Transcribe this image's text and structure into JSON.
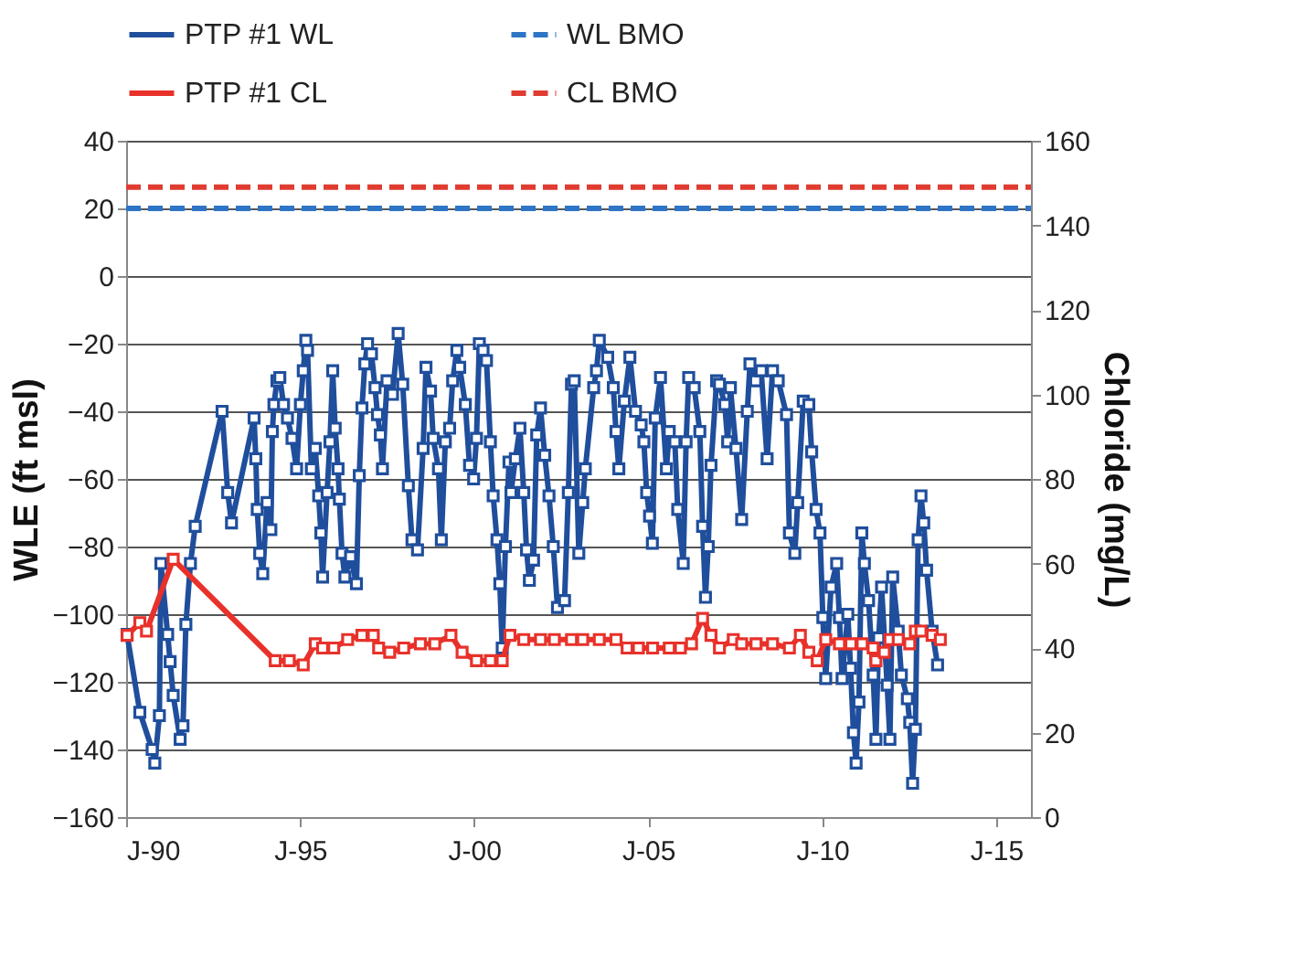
{
  "chart_data": {
    "type": "line",
    "ylabel": "WLE (ft msl)",
    "y2label": "Chloride (mg/L)",
    "xlim": [
      "1990-01",
      "2016-01"
    ],
    "xticks": [
      {
        "value": "1990-01",
        "label": "J-90"
      },
      {
        "value": "1995-01",
        "label": "J-95"
      },
      {
        "value": "2000-01",
        "label": "J-00"
      },
      {
        "value": "2005-01",
        "label": "J-05"
      },
      {
        "value": "2010-01",
        "label": "J-10"
      },
      {
        "value": "2015-01",
        "label": "J-15"
      }
    ],
    "ylim": [
      -160,
      40
    ],
    "yticks": [
      -160,
      -140,
      -120,
      -100,
      -80,
      -60,
      -40,
      -20,
      0,
      20,
      40
    ],
    "y2lim": [
      0,
      160
    ],
    "y2ticks": [
      0,
      20,
      40,
      60,
      80,
      100,
      120,
      140,
      160
    ],
    "grid": "y",
    "legend": "top",
    "series": [
      {
        "name": "PTP #1 WL",
        "color": "#1f4e9c",
        "marker": "square",
        "line_style": "solid",
        "x": [
          "1990-01-11",
          "1990-05-25",
          "1990-08-03",
          "1990-10-01",
          "1990-10-29",
          "1990-12-16",
          "1991-01-01",
          "1991-03-13",
          "1991-04-08",
          "1991-05-10",
          "1991-06-05",
          "1991-07-22",
          "1991-08-21",
          "1991-09-20",
          "1991-11-07",
          "1991-12-27",
          "1992-10-04",
          "1992-12-02",
          "1993-01-11",
          "1993-09-05",
          "1993-09-23",
          "1993-10-08",
          "1993-11-03",
          "1993-12-05",
          "1994-01-19",
          "1994-02-28",
          "1994-03-16",
          "1994-04-01",
          "1994-05-03",
          "1994-06-02",
          "1994-07-11",
          "1994-08-21",
          "1994-10-08",
          "1994-11-25",
          "1995-01-04",
          "1995-02-03",
          "1995-03-02",
          "1995-03-20",
          "1995-04-29",
          "1995-06-09",
          "1995-07-15",
          "1995-08-07",
          "1995-08-25",
          "1995-10-11",
          "1995-11-10",
          "1995-12-09",
          "1996-01-04",
          "1996-02-03",
          "1996-02-17",
          "1996-03-16",
          "1996-04-15",
          "1996-06-13",
          "1996-08-14",
          "1996-09-13",
          "1996-10-11",
          "1996-11-10",
          "1996-12-09",
          "1997-01-19",
          "1997-02-25",
          "1997-03-23",
          "1997-04-22",
          "1997-05-14",
          "1997-07-01",
          "1997-08-28",
          "1997-10-26",
          "1997-12-13",
          "1998-02-10",
          "1998-03-20",
          "1998-05-17",
          "1998-07-15",
          "1998-08-14",
          "1998-10-01",
          "1998-10-29",
          "1998-12-23",
          "1999-01-22",
          "1999-03-05",
          "1999-04-19",
          "1999-05-21",
          "1999-07-04",
          "1999-08-03",
          "1999-10-01",
          "1999-11-14",
          "1999-12-27",
          "2000-01-26",
          "2000-02-25",
          "2000-04-04",
          "2000-05-10",
          "2000-06-20",
          "2000-07-19",
          "2000-08-28",
          "2000-09-27",
          "2000-10-22",
          "2000-11-25",
          "2001-01-01",
          "2001-01-22",
          "2001-03-09",
          "2001-04-26",
          "2001-06-05",
          "2001-07-04",
          "2001-08-03",
          "2001-09-16",
          "2001-10-19",
          "2001-11-28",
          "2002-01-11",
          "2002-02-25",
          "2002-04-11",
          "2002-05-25",
          "2002-08-07",
          "2002-09-16",
          "2002-10-19",
          "2002-11-17",
          "2003-01-04",
          "2003-02-14",
          "2003-03-13",
          "2003-06-09",
          "2003-07-08",
          "2003-08-07",
          "2003-11-03",
          "2004-01-01",
          "2004-01-29",
          "2004-02-28",
          "2004-04-26",
          "2004-06-23",
          "2004-08-21",
          "2004-10-19",
          "2004-11-17",
          "2004-12-16",
          "2005-01-15",
          "2005-02-14",
          "2005-03-16",
          "2005-05-10",
          "2005-07-11",
          "2005-08-10",
          "2005-10-08",
          "2005-11-07",
          "2006-01-04",
          "2006-02-03",
          "2006-03-02",
          "2006-04-29",
          "2006-06-27",
          "2006-07-26",
          "2006-08-25",
          "2006-09-23",
          "2006-10-22",
          "2006-12-20",
          "2007-01-19",
          "2007-03-16",
          "2007-04-15",
          "2007-05-14",
          "2007-07-11",
          "2007-09-09",
          "2007-11-07",
          "2007-12-05",
          "2008-02-03",
          "2008-04-01",
          "2008-06-02",
          "2008-07-29",
          "2008-09-27",
          "2008-12-23",
          "2009-01-22",
          "2009-03-20",
          "2009-04-19",
          "2009-06-16",
          "2009-08-14",
          "2009-09-13",
          "2009-10-29",
          "2009-12-09",
          "2010-01-08",
          "2010-02-07",
          "2010-04-04",
          "2010-06-02",
          "2010-07-01",
          "2010-07-29",
          "2010-09-27",
          "2010-10-26",
          "2010-11-25",
          "2010-12-23",
          "2011-01-22",
          "2011-02-21",
          "2011-03-20",
          "2011-05-03",
          "2011-06-20",
          "2011-07-19",
          "2011-08-17",
          "2011-09-16",
          "2011-11-14",
          "2011-12-13",
          "2012-01-11",
          "2012-03-09",
          "2012-04-11",
          "2012-06-13",
          "2012-07-08",
          "2012-08-07",
          "2012-09-05",
          "2012-10-04",
          "2012-11-03",
          "2012-12-02",
          "2013-01-01",
          "2013-02-28",
          "2013-04-26"
        ],
        "values": [
          -106,
          -129,
          null,
          -140,
          -144,
          -130,
          -85,
          -106,
          -114,
          -124,
          null,
          -137,
          -133,
          -103,
          -85,
          -74,
          -40,
          -64,
          -73,
          -42,
          -54,
          -69,
          -82,
          -88,
          -67,
          -75,
          -46,
          -38,
          -31,
          -30,
          -38,
          -42,
          -48,
          -57,
          -38,
          -28,
          -19,
          -22,
          -57,
          -51,
          -65,
          -76,
          -89,
          -64,
          -49,
          -28,
          -45,
          -57,
          -66,
          -82,
          -89,
          -83,
          -91,
          -59,
          -39,
          -26,
          -20,
          -23,
          -33,
          -41,
          -47,
          -57,
          -31,
          -35,
          -17,
          -32,
          -62,
          -78,
          -81,
          -51,
          -27,
          -34,
          -48,
          -57,
          -78,
          -49,
          -45,
          -31,
          -22,
          -27,
          -38,
          -56,
          -60,
          -48,
          -20,
          -22,
          -25,
          -49,
          -65,
          -78,
          -91,
          -110,
          -80,
          -55,
          -64,
          -54,
          -45,
          -64,
          -81,
          -90,
          -84,
          -47,
          -39,
          -53,
          -65,
          -80,
          -98,
          -96,
          -64,
          -32,
          -31,
          -82,
          -67,
          -57,
          -33,
          -28,
          -19,
          -24,
          -33,
          -46,
          -57,
          -37,
          -24,
          -40,
          -44,
          -49,
          -64,
          -71,
          -79,
          -42,
          -30,
          -57,
          -46,
          -49,
          -69,
          -85,
          -49,
          -30,
          -33,
          -46,
          -74,
          -95,
          -80,
          -56,
          -31,
          -32,
          -38,
          -49,
          -33,
          -51,
          -72,
          -40,
          -26,
          -31,
          -28,
          -54,
          -28,
          -31,
          -41,
          -76,
          -82,
          -67,
          -37,
          -38,
          -52,
          -69,
          -76,
          -101,
          -119,
          -92,
          -85,
          -101,
          -119,
          -100,
          -116,
          -135,
          -144,
          -126,
          -76,
          -85,
          -96,
          -118,
          -137,
          -107,
          -92,
          -121,
          -137,
          -89,
          -105,
          -118,
          -125,
          -132,
          -150,
          -134,
          -78,
          -65,
          -73,
          -87,
          -105,
          -115
        ]
      },
      {
        "name": "WL BMO",
        "color": "#2e75c6",
        "marker": "none",
        "line_style": "dashed",
        "x": [
          "1990-01",
          "2016-01"
        ],
        "values": [
          20,
          20
        ]
      },
      {
        "name": "PTP #1 CL",
        "color": "#e8312a",
        "marker": "square",
        "line_style": "solid",
        "axis": "y2",
        "x": [
          "1990-01-11",
          "1990-05-25",
          "1990-08-03",
          "1991-05-10",
          "1994-04-15",
          "1994-09-09",
          "1995-02-03",
          "1995-06-09",
          "1995-08-25",
          "1995-12-20",
          "1996-05-14",
          "1996-10-11",
          "1997-02-07",
          "1997-04-04",
          "1997-07-29",
          "1997-12-23",
          "1998-06-16",
          "1998-11-14",
          "1999-05-03",
          "1999-08-28",
          "2000-01-26",
          "2000-06-20",
          "2000-10-22",
          "2001-01-11",
          "2001-06-05",
          "2001-11-28",
          "2002-04-22",
          "2002-10-19",
          "2003-02-14",
          "2003-08-07",
          "2004-01-29",
          "2004-05-25",
          "2004-09-20",
          "2005-02-17",
          "2005-08-10",
          "2005-12-05",
          "2006-04-01",
          "2006-07-26",
          "2006-10-22",
          "2007-01-19",
          "2007-06-13",
          "2007-09-09",
          "2008-02-07",
          "2008-07-29",
          "2009-01-22",
          "2009-05-17",
          "2009-08-14",
          "2009-11-10",
          "2010-02-07",
          "2010-07-01",
          "2010-10-29",
          "2011-02-25",
          "2011-06-20",
          "2011-07-19",
          "2011-10-15",
          "2011-12-13",
          "2012-03-09",
          "2012-07-08",
          "2012-09-05",
          "2012-11-03",
          "2013-02-28",
          "2013-05-25"
        ],
        "values": [
          43,
          46,
          44,
          61,
          37,
          37,
          36,
          41,
          40,
          40,
          42,
          43,
          43,
          40,
          39,
          40,
          41,
          41,
          43,
          39,
          37,
          37,
          37,
          43,
          42,
          42,
          42,
          42,
          42,
          42,
          42,
          40,
          40,
          40,
          40,
          40,
          41,
          47,
          43,
          40,
          42,
          41,
          41,
          41,
          40,
          43,
          39,
          37,
          42,
          41,
          41,
          41,
          40,
          37,
          39,
          42,
          42,
          41,
          44,
          44,
          43,
          42
        ]
      },
      {
        "name": "CL BMO",
        "color": "#e03c31",
        "marker": "none",
        "line_style": "dashed",
        "axis": "y2",
        "x": [
          "1990-01",
          "2016-01"
        ],
        "values": [
          149,
          149
        ]
      }
    ]
  }
}
